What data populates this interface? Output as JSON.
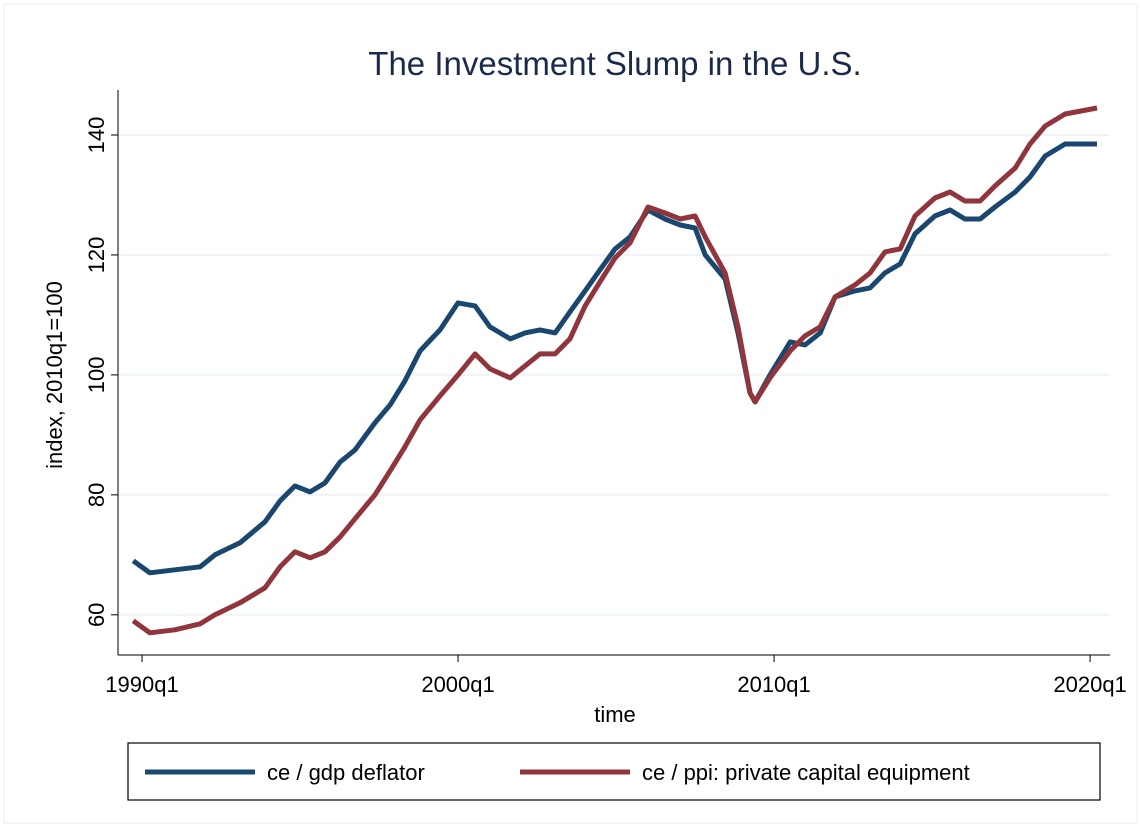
{
  "chart_data": {
    "type": "line",
    "title": "The Investment Slump in the U.S.",
    "x_label": "time",
    "y_label": "index, 2010q1=100",
    "x": [
      1989.72,
      1990.25,
      1991.04,
      1991.84,
      1992.31,
      1993.1,
      1993.89,
      1994.37,
      1994.84,
      1995.32,
      1995.79,
      1996.27,
      1996.74,
      1997.37,
      1997.85,
      1998.32,
      1998.8,
      1999.43,
      2000,
      2000.54,
      2001.01,
      2001.65,
      2002.12,
      2002.59,
      2003.07,
      2003.54,
      2004.02,
      2004.49,
      2004.97,
      2005.44,
      2006.01,
      2006.55,
      2007.03,
      2007.5,
      2007.82,
      2008.45,
      2008.86,
      2009.24,
      2009.4,
      2009.87,
      2010.51,
      2010.98,
      2011.46,
      2011.93,
      2012.56,
      2013.04,
      2013.51,
      2013.99,
      2014.46,
      2015.09,
      2015.57,
      2016.04,
      2016.52,
      2016.99,
      2017.63,
      2018.1,
      2018.58,
      2019.21,
      2020.22
    ],
    "series": [
      {
        "name": "ce / gdp deflator",
        "color": "#1a476f",
        "values": [
          69,
          67,
          67.5,
          68,
          70,
          72,
          75.5,
          79,
          81.5,
          80.5,
          82,
          85.5,
          87.5,
          92,
          95,
          99,
          104,
          107.5,
          112,
          111.5,
          108,
          106,
          107,
          107.5,
          107,
          110.5,
          114,
          117.5,
          121,
          123,
          127.5,
          126,
          125,
          124.5,
          120,
          116,
          107,
          97,
          95.5,
          100,
          105.5,
          105,
          107,
          113,
          114,
          114.5,
          117,
          118.5,
          123.5,
          126.5,
          127.5,
          126,
          126,
          128,
          130.5,
          133,
          136.5,
          138.5,
          138.5
        ]
      },
      {
        "name": "ce / ppi: private capital equipment",
        "color": "#90353b",
        "values": [
          59,
          57,
          57.5,
          58.5,
          60,
          62,
          64.5,
          68,
          70.5,
          69.5,
          70.5,
          73,
          76,
          80,
          84,
          88,
          92.5,
          96.5,
          100,
          103.5,
          101,
          99.5,
          101.5,
          103.5,
          103.5,
          106,
          111.5,
          115.5,
          119.5,
          122,
          128,
          127,
          126,
          126.5,
          123,
          117,
          108,
          97,
          95.5,
          99.5,
          104,
          106.5,
          108,
          113,
          115,
          117,
          120.5,
          121,
          126.5,
          129.5,
          130.5,
          129,
          129,
          131.5,
          134.5,
          138.5,
          141.5,
          143.5,
          144.5
        ]
      }
    ],
    "xlim": [
      1989.24,
      2020.63
    ],
    "ylim": [
      53.3,
      147.5
    ],
    "xticks": [
      {
        "value": 1990,
        "label": "1990q1"
      },
      {
        "value": 2000,
        "label": "2000q1"
      },
      {
        "value": 2010,
        "label": "2010q1"
      },
      {
        "value": 2020,
        "label": "2020q1"
      }
    ],
    "yticks": [
      60,
      80,
      100,
      120,
      140
    ],
    "grid": true,
    "legend": "bottom"
  }
}
